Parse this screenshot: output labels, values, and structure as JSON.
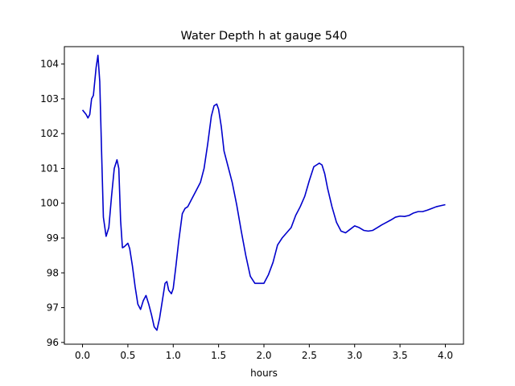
{
  "chart_data": {
    "type": "line",
    "title": "Water Depth h at gauge 540",
    "xlabel": "hours",
    "ylabel": "",
    "xlim": [
      -0.2,
      4.2
    ],
    "ylim": [
      95.95,
      104.5
    ],
    "xticks": [
      0.0,
      0.5,
      1.0,
      1.5,
      2.0,
      2.5,
      3.0,
      3.5,
      4.0
    ],
    "xtick_labels": [
      "0.0",
      "0.5",
      "1.0",
      "1.5",
      "2.0",
      "2.5",
      "3.0",
      "3.5",
      "4.0"
    ],
    "yticks": [
      96,
      97,
      98,
      99,
      100,
      101,
      102,
      103,
      104
    ],
    "ytick_labels": [
      "96",
      "97",
      "98",
      "99",
      "100",
      "101",
      "102",
      "103",
      "104"
    ],
    "grid": false,
    "legend": "none",
    "series": [
      {
        "color": "#0000cc",
        "x": [
          0.0,
          0.04,
          0.06,
          0.08,
          0.1,
          0.12,
          0.15,
          0.17,
          0.19,
          0.21,
          0.23,
          0.26,
          0.29,
          0.32,
          0.35,
          0.38,
          0.4,
          0.42,
          0.44,
          0.46,
          0.5,
          0.52,
          0.55,
          0.58,
          0.61,
          0.64,
          0.67,
          0.7,
          0.73,
          0.76,
          0.79,
          0.82,
          0.85,
          0.88,
          0.91,
          0.93,
          0.95,
          0.98,
          1.0,
          1.03,
          1.06,
          1.1,
          1.13,
          1.16,
          1.2,
          1.25,
          1.3,
          1.34,
          1.38,
          1.42,
          1.45,
          1.48,
          1.5,
          1.53,
          1.56,
          1.6,
          1.65,
          1.7,
          1.75,
          1.8,
          1.85,
          1.9,
          1.95,
          2.0,
          2.05,
          2.1,
          2.15,
          2.2,
          2.25,
          2.3,
          2.35,
          2.4,
          2.45,
          2.5,
          2.55,
          2.58,
          2.61,
          2.64,
          2.67,
          2.7,
          2.75,
          2.8,
          2.85,
          2.9,
          2.95,
          3.0,
          3.05,
          3.1,
          3.15,
          3.2,
          3.25,
          3.3,
          3.35,
          3.4,
          3.45,
          3.5,
          3.55,
          3.6,
          3.65,
          3.7,
          3.75,
          3.8,
          3.85,
          3.9,
          3.95,
          4.0
        ],
        "y": [
          102.68,
          102.55,
          102.45,
          102.55,
          103.0,
          103.1,
          103.9,
          104.25,
          103.5,
          101.5,
          99.6,
          99.05,
          99.3,
          100.2,
          101.0,
          101.25,
          101.0,
          99.5,
          98.72,
          98.75,
          98.85,
          98.7,
          98.2,
          97.6,
          97.1,
          96.95,
          97.2,
          97.35,
          97.1,
          96.8,
          96.45,
          96.35,
          96.7,
          97.2,
          97.7,
          97.75,
          97.5,
          97.4,
          97.55,
          98.2,
          98.9,
          99.7,
          99.85,
          99.9,
          100.1,
          100.35,
          100.6,
          101.0,
          101.7,
          102.5,
          102.8,
          102.85,
          102.7,
          102.2,
          101.5,
          101.1,
          100.6,
          99.95,
          99.2,
          98.5,
          97.9,
          97.7,
          97.7,
          97.7,
          97.95,
          98.3,
          98.8,
          99.0,
          99.15,
          99.3,
          99.65,
          99.9,
          100.2,
          100.65,
          101.05,
          101.1,
          101.15,
          101.1,
          100.85,
          100.45,
          99.9,
          99.45,
          99.2,
          99.15,
          99.25,
          99.35,
          99.3,
          99.22,
          99.2,
          99.22,
          99.3,
          99.38,
          99.45,
          99.52,
          99.6,
          99.63,
          99.62,
          99.65,
          99.72,
          99.76,
          99.76,
          99.8,
          99.85,
          99.9,
          99.93,
          99.96
        ]
      }
    ]
  }
}
